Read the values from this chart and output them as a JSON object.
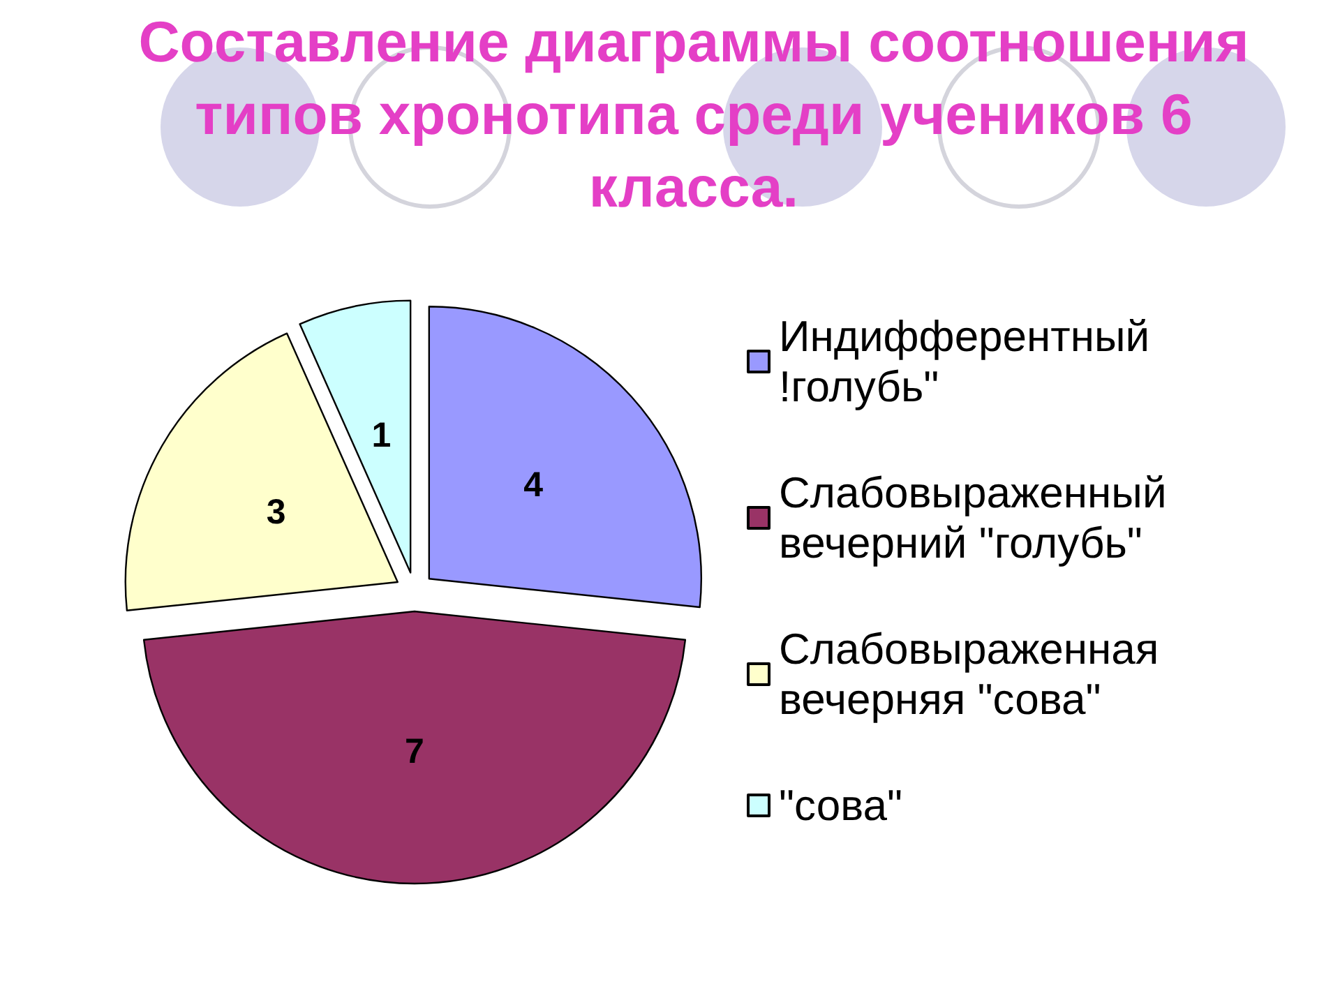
{
  "chart_data": {
    "type": "pie",
    "title": "Составление диаграммы соотношения типов хронотипа среди учеников 6 класса.",
    "categories": [
      "Индифферентный !голубь\"",
      "Слабовыраженный вечерний \"голубь\"",
      "Слабовыраженная вечерняя \"сова\"",
      "\"сова\""
    ],
    "values": [
      4,
      7,
      3,
      1
    ],
    "colors": [
      "#9999ff",
      "#993366",
      "#ffffcc",
      "#ccffff"
    ],
    "data_labels": true,
    "legend": "right"
  }
}
